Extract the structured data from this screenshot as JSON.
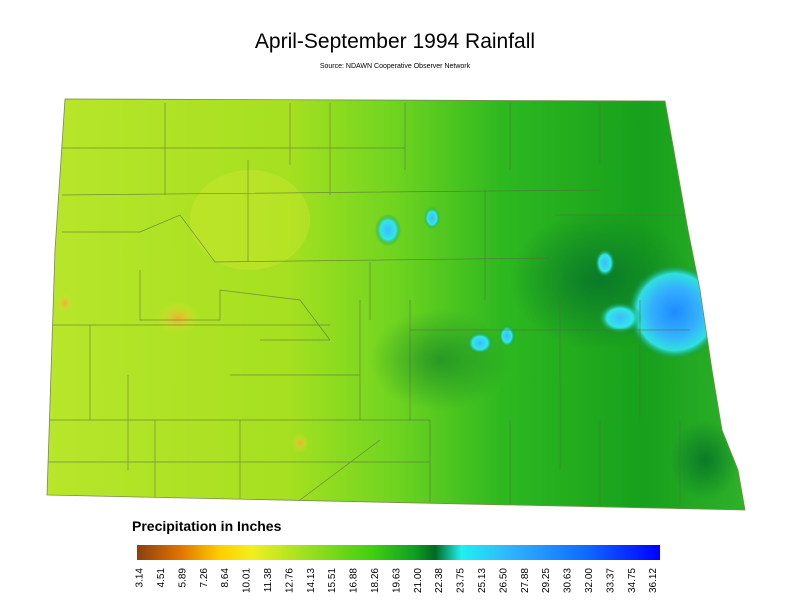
{
  "header": {
    "title": "April-September 1994 Rainfall",
    "source": "Source: NDAWN Cooperative Observer Network"
  },
  "legend": {
    "title": "Precipitation in Inches",
    "labels": [
      "3.14",
      "4.51",
      "5.89",
      "7.26",
      "8.64",
      "10.01",
      "11.38",
      "12.76",
      "14.13",
      "15.51",
      "16.88",
      "18.26",
      "19.63",
      "21.00",
      "22.38",
      "23.75",
      "25.13",
      "26.50",
      "27.88",
      "29.25",
      "30.63",
      "32.00",
      "33.37",
      "34.75",
      "36.12"
    ]
  }
}
